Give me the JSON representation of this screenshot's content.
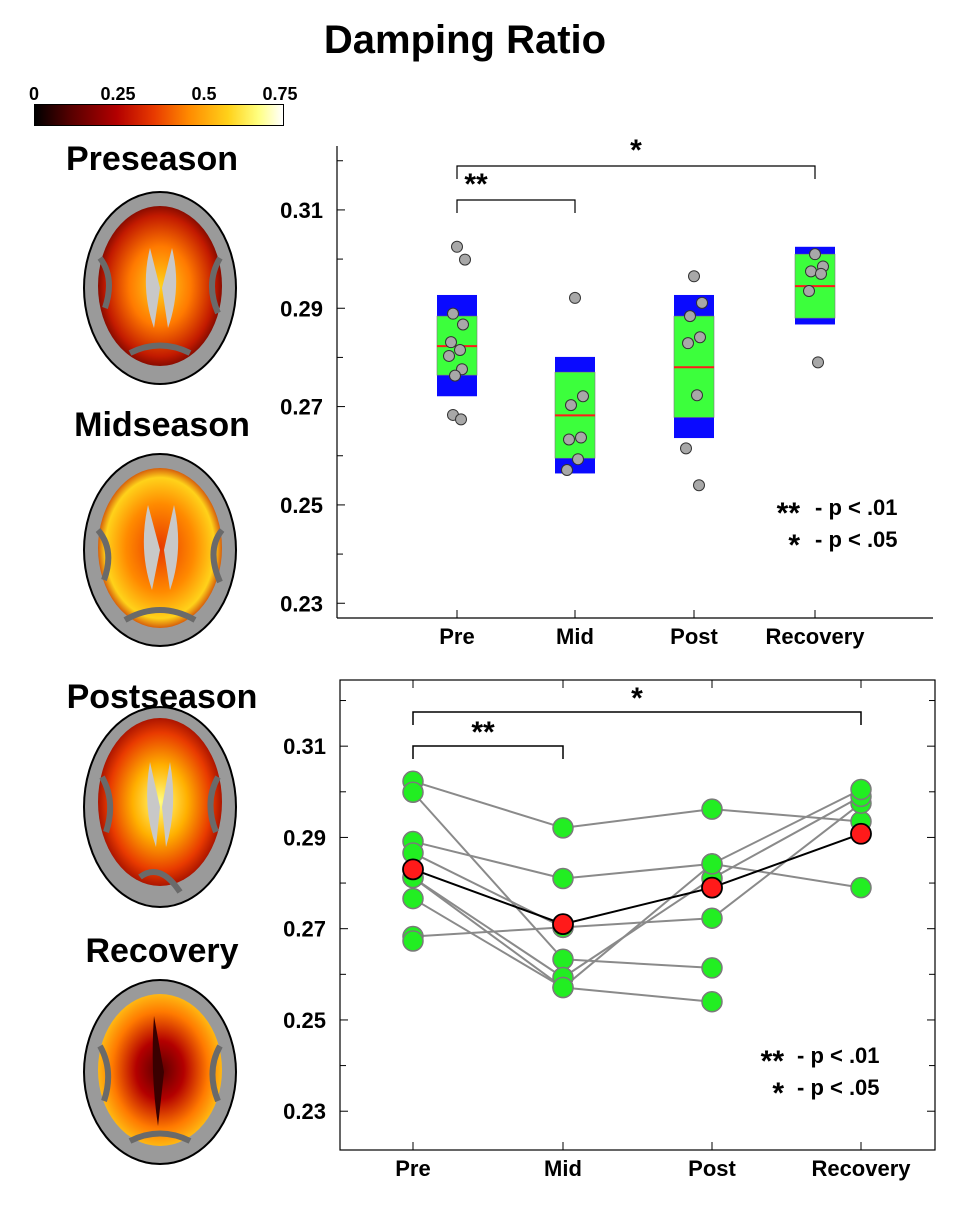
{
  "title": "Damping Ratio",
  "colorbar": {
    "ticks": [
      "0",
      "0.25",
      "0.5",
      "0.75"
    ]
  },
  "scan_labels": [
    "Preseason",
    "Midseason",
    "Postseason",
    "Recovery"
  ],
  "chart_data": [
    {
      "type": "box",
      "categories": [
        "Pre",
        "Mid",
        "Post",
        "Recovery"
      ],
      "y_ticks": [
        "0.31",
        "0.29",
        "0.27",
        "0.25",
        "0.23"
      ],
      "ylim": [
        0.227,
        0.323
      ],
      "boxes": [
        {
          "outer": [
            0.2721,
            0.2927
          ],
          "inner": [
            0.2764,
            0.2884
          ],
          "median": 0.2823
        },
        {
          "outer": [
            0.2564,
            0.2801
          ],
          "inner": [
            0.2595,
            0.277
          ],
          "median": 0.2682
        },
        {
          "outer": [
            0.2636,
            0.2927
          ],
          "inner": [
            0.2678,
            0.2884
          ],
          "median": 0.278
        },
        {
          "outer": [
            0.2867,
            0.3025
          ],
          "inner": [
            0.288,
            0.301
          ],
          "median": 0.2945
        }
      ],
      "points": [
        [
          0.3025,
          0.2999,
          0.2889,
          0.2867,
          0.2831,
          0.2815,
          0.2803,
          0.2776,
          0.2763,
          0.2683,
          0.2674
        ],
        [
          0.2921,
          0.2721,
          0.2703,
          0.2637,
          0.2633,
          0.2593,
          0.2571
        ],
        [
          0.2965,
          0.2911,
          0.2884,
          0.2841,
          0.2829,
          0.2723,
          0.2615,
          0.254
        ],
        [
          0.301,
          0.2985,
          0.2975,
          0.297,
          0.2935,
          0.279
        ]
      ],
      "significance": [
        {
          "from": 0,
          "to": 1,
          "label": "**"
        },
        {
          "from": 0,
          "to": 3,
          "label": "*"
        }
      ],
      "legend": [
        {
          "stars": "**",
          "text": "- p < .01"
        },
        {
          "stars": "*",
          "text": "- p < .05"
        }
      ]
    },
    {
      "type": "line",
      "categories": [
        "Pre",
        "Mid",
        "Post",
        "Recovery"
      ],
      "y_ticks": [
        "0.31",
        "0.29",
        "0.27",
        "0.25",
        "0.23"
      ],
      "ylim": [
        0.2215,
        0.3245
      ],
      "subjects": [
        [
          0.3023,
          0.2921,
          0.2962,
          0.2935
        ],
        [
          0.2999,
          0.2633,
          0.2614,
          null
        ],
        [
          0.2891,
          0.281,
          0.2842,
          0.279
        ],
        [
          0.2866,
          0.2703,
          0.2723,
          0.2975
        ],
        [
          0.2812,
          0.2593,
          0.281,
          0.299
        ],
        [
          0.2812,
          0.2571,
          0.254,
          null
        ],
        [
          0.2766,
          0.2571,
          0.2842,
          0.3005
        ],
        [
          0.2683,
          0.2703,
          null,
          null
        ],
        [
          0.2673,
          null,
          null,
          null
        ]
      ],
      "mean": [
        0.283,
        0.271,
        0.279,
        0.2908
      ],
      "significance": [
        {
          "from": 0,
          "to": 1,
          "label": "**"
        },
        {
          "from": 0,
          "to": 3,
          "label": "*"
        }
      ],
      "legend": [
        {
          "stars": "**",
          "text": "- p < .01"
        },
        {
          "stars": "*",
          "text": "- p < .05"
        }
      ]
    }
  ]
}
